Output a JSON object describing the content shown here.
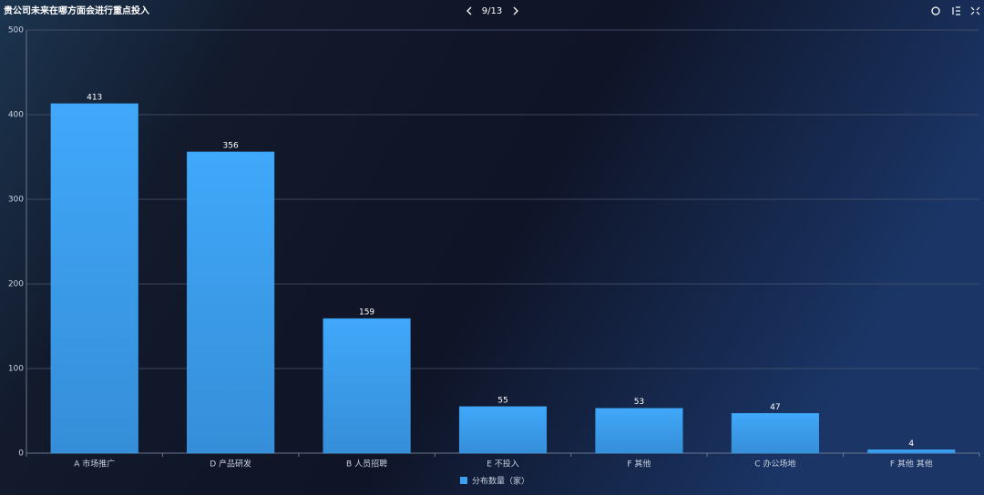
{
  "toolbar": {
    "page": "9/13"
  },
  "chart_data": {
    "type": "bar",
    "title": "贵公司未来在哪方面会进行重点投入",
    "categories": [
      "A 市场推广",
      "D 产品研发",
      "B 人员招聘",
      "E 不投入",
      "F 其他",
      "C 办公场地",
      "F 其他 其他"
    ],
    "series": [
      {
        "name": "分布数量（家）",
        "color": "#3aa0f0",
        "values": [
          413,
          356,
          159,
          55,
          53,
          47,
          4
        ]
      }
    ],
    "ylim": [
      0,
      500
    ],
    "yticks": [
      0,
      100,
      200,
      300,
      400,
      500
    ],
    "grid": true,
    "legend": "bottom"
  }
}
